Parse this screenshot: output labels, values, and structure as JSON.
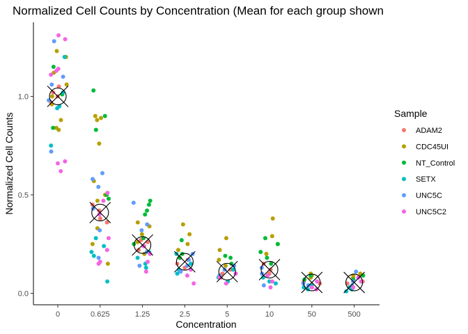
{
  "chart_data": {
    "type": "scatter",
    "title": "Normalized Cell Counts by Concentration (Mean for each group shown",
    "xlabel": "Concentration",
    "ylabel": "Normalized Cell Counts",
    "categories": [
      "0",
      "0.625",
      "1.25",
      "2.5",
      "5",
      "10",
      "50",
      "500"
    ],
    "y_ticks": [
      0.0,
      0.5,
      1.0
    ],
    "y_tick_labels": [
      "0.0",
      "0.5",
      "1.0"
    ],
    "ylim": [
      -0.04,
      1.36
    ],
    "grid": false,
    "legend": {
      "title": "Sample",
      "position": "right",
      "entries": [
        "ADAM2",
        "CDC45UI",
        "NT_Control",
        "SETX",
        "UNC5C",
        "UNC5C2"
      ]
    },
    "colors": {
      "ADAM2": "#F8766D",
      "CDC45UI": "#B79F00",
      "NT_Control": "#00BA38",
      "SETX": "#00BFC4",
      "UNC5C": "#619CFF",
      "UNC5C2": "#F564E3"
    },
    "means": [
      1.0,
      0.41,
      0.245,
      0.16,
      0.11,
      0.12,
      0.055,
      0.055
    ],
    "mean_marker": "circle-with-x",
    "series": [
      {
        "name": "ADAM2",
        "points": [
          [
            0,
            1.0
          ],
          [
            0,
            1.05
          ],
          [
            0,
            0.97
          ],
          [
            0,
            1.02
          ],
          [
            1,
            0.42
          ],
          [
            1,
            0.38
          ],
          [
            1,
            0.45
          ],
          [
            1,
            0.36
          ],
          [
            2,
            0.24
          ],
          [
            2,
            0.27
          ],
          [
            2,
            0.22
          ],
          [
            2,
            0.26
          ],
          [
            3,
            0.17
          ],
          [
            3,
            0.15
          ],
          [
            3,
            0.13
          ],
          [
            4,
            0.1
          ],
          [
            4,
            0.12
          ],
          [
            4,
            0.08
          ],
          [
            5,
            0.12
          ],
          [
            5,
            0.1
          ],
          [
            5,
            0.15
          ],
          [
            6,
            0.06
          ],
          [
            6,
            0.05
          ],
          [
            7,
            0.06
          ],
          [
            7,
            0.05
          ]
        ]
      },
      {
        "name": "CDC45UI",
        "points": [
          [
            0,
            1.23
          ],
          [
            0,
            1.2
          ],
          [
            0,
            1.0
          ],
          [
            0,
            0.84
          ],
          [
            0,
            0.83
          ],
          [
            0,
            0.88
          ],
          [
            0,
            1.12
          ],
          [
            0,
            0.96
          ],
          [
            0,
            1.06
          ],
          [
            1,
            0.76
          ],
          [
            1,
            0.9
          ],
          [
            1,
            0.89
          ],
          [
            1,
            0.88
          ],
          [
            1,
            0.57
          ],
          [
            1,
            0.5
          ],
          [
            1,
            0.47
          ],
          [
            1,
            0.33
          ],
          [
            1,
            0.25
          ],
          [
            1,
            0.15
          ],
          [
            2,
            0.36
          ],
          [
            2,
            0.34
          ],
          [
            2,
            0.3
          ],
          [
            2,
            0.26
          ],
          [
            2,
            0.2
          ],
          [
            3,
            0.35
          ],
          [
            3,
            0.3
          ],
          [
            3,
            0.25
          ],
          [
            3,
            0.22
          ],
          [
            3,
            0.18
          ],
          [
            4,
            0.28
          ],
          [
            4,
            0.22
          ],
          [
            4,
            0.17
          ],
          [
            4,
            0.14
          ],
          [
            5,
            0.38
          ],
          [
            5,
            0.29
          ],
          [
            5,
            0.25
          ],
          [
            5,
            0.2
          ],
          [
            6,
            0.1
          ],
          [
            6,
            0.09
          ],
          [
            6,
            0.08
          ],
          [
            7,
            0.1
          ],
          [
            7,
            0.09
          ],
          [
            7,
            0.08
          ]
        ]
      },
      {
        "name": "NT_Control",
        "points": [
          [
            0,
            1.15
          ],
          [
            0,
            0.84
          ],
          [
            0,
            1.01
          ],
          [
            1,
            1.03
          ],
          [
            1,
            0.83
          ],
          [
            1,
            0.9
          ],
          [
            1,
            0.5
          ],
          [
            1,
            0.48
          ],
          [
            2,
            0.47
          ],
          [
            2,
            0.45
          ],
          [
            2,
            0.42
          ],
          [
            2,
            0.4
          ],
          [
            2,
            0.28
          ],
          [
            2,
            0.25
          ],
          [
            3,
            0.27
          ],
          [
            3,
            0.2
          ],
          [
            3,
            0.18
          ],
          [
            4,
            0.19
          ],
          [
            4,
            0.18
          ],
          [
            4,
            0.15
          ],
          [
            5,
            0.28
          ],
          [
            5,
            0.25
          ],
          [
            5,
            0.21
          ],
          [
            5,
            0.18
          ],
          [
            5,
            0.15
          ],
          [
            6,
            0.09
          ],
          [
            6,
            0.07
          ],
          [
            7,
            0.09
          ],
          [
            7,
            0.07
          ]
        ]
      },
      {
        "name": "SETX",
        "points": [
          [
            0,
            1.2
          ],
          [
            0,
            0.95
          ],
          [
            0,
            0.94
          ],
          [
            0,
            0.75
          ],
          [
            0,
            1.02
          ],
          [
            1,
            0.06
          ],
          [
            1,
            0.28
          ],
          [
            1,
            0.21
          ],
          [
            1,
            0.19
          ],
          [
            1,
            0.24
          ],
          [
            2,
            0.13
          ],
          [
            2,
            0.15
          ],
          [
            2,
            0.21
          ],
          [
            2,
            0.18
          ],
          [
            3,
            0.15
          ],
          [
            3,
            0.12
          ],
          [
            3,
            0.2
          ],
          [
            3,
            0.1
          ],
          [
            4,
            0.08
          ],
          [
            4,
            0.06
          ],
          [
            4,
            0.12
          ],
          [
            5,
            0.05
          ],
          [
            5,
            0.08
          ],
          [
            5,
            0.06
          ],
          [
            6,
            0.03
          ],
          [
            6,
            0.02
          ],
          [
            6,
            0.04
          ],
          [
            7,
            0.01
          ],
          [
            7,
            0.02
          ],
          [
            7,
            0.03
          ]
        ]
      },
      {
        "name": "UNC5C",
        "points": [
          [
            0,
            1.28
          ],
          [
            0,
            1.1
          ],
          [
            0,
            0.72
          ],
          [
            0,
            1.06
          ],
          [
            0,
            0.98
          ],
          [
            1,
            0.61
          ],
          [
            1,
            0.58
          ],
          [
            1,
            0.54
          ],
          [
            1,
            0.43
          ],
          [
            1,
            0.32
          ],
          [
            1,
            0.18
          ],
          [
            2,
            0.46
          ],
          [
            2,
            0.35
          ],
          [
            2,
            0.32
          ],
          [
            2,
            0.21
          ],
          [
            2,
            0.14
          ],
          [
            3,
            0.2
          ],
          [
            3,
            0.17
          ],
          [
            3,
            0.14
          ],
          [
            3,
            0.11
          ],
          [
            4,
            0.12
          ],
          [
            4,
            0.09
          ],
          [
            4,
            0.14
          ],
          [
            5,
            0.1
          ],
          [
            5,
            0.13
          ],
          [
            5,
            0.04
          ],
          [
            6,
            0.04
          ],
          [
            6,
            0.05
          ],
          [
            7,
            0.11
          ],
          [
            7,
            0.06
          ],
          [
            7,
            0.04
          ]
        ]
      },
      {
        "name": "UNC5C2",
        "points": [
          [
            0,
            1.31
          ],
          [
            0,
            1.29
          ],
          [
            0,
            1.14
          ],
          [
            0,
            1.13
          ],
          [
            0,
            1.11
          ],
          [
            0,
            0.67
          ],
          [
            0,
            0.62
          ],
          [
            0,
            0.66
          ],
          [
            1,
            0.51
          ],
          [
            1,
            0.47
          ],
          [
            1,
            0.4
          ],
          [
            1,
            0.28
          ],
          [
            1,
            0.22
          ],
          [
            1,
            0.15
          ],
          [
            1,
            0.16
          ],
          [
            2,
            0.11
          ],
          [
            2,
            0.16
          ],
          [
            2,
            0.2
          ],
          [
            2,
            0.24
          ],
          [
            3,
            0.05
          ],
          [
            3,
            0.09
          ],
          [
            3,
            0.12
          ],
          [
            4,
            0.05
          ],
          [
            4,
            0.08
          ],
          [
            4,
            0.1
          ],
          [
            5,
            0.03
          ],
          [
            5,
            0.06
          ],
          [
            5,
            0.09
          ],
          [
            6,
            0.02
          ],
          [
            6,
            0.06
          ],
          [
            6,
            0.03
          ],
          [
            7,
            0.03
          ],
          [
            7,
            0.06
          ],
          [
            7,
            0.08
          ]
        ]
      }
    ]
  }
}
